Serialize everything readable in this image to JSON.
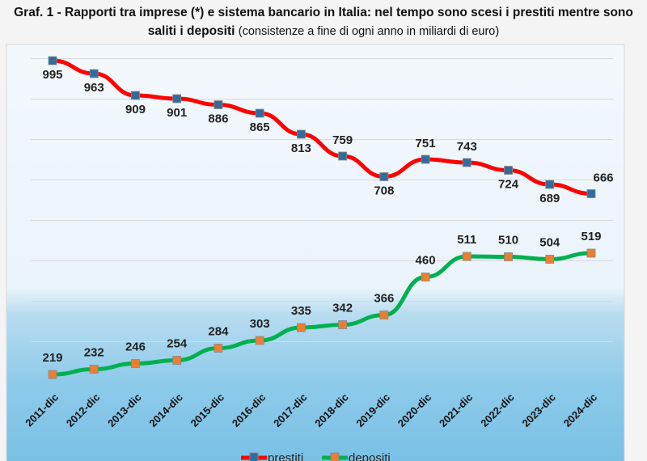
{
  "title": "Graf. 1 - Rapporti tra imprese (*) e sistema bancario in Italia: nel tempo sono scesi i prestiti mentre sono saliti i depositi",
  "subtitle": "(consistenze a fine di ogni anno in miliardi di euro)",
  "chart_data": {
    "type": "line",
    "categories": [
      "2011-dic",
      "2012-dic",
      "2013-dic",
      "2014-dic",
      "2015-dic",
      "2016-dic",
      "2017-dic",
      "2018-dic",
      "2019-dic",
      "2020-dic",
      "2021-dic",
      "2022-dic",
      "2023-dic",
      "2024-dic"
    ],
    "series": [
      {
        "name": "prestiti",
        "color": "#ff0000",
        "marker_color": "#2e6d9e",
        "values": [
          995,
          963,
          909,
          901,
          886,
          865,
          813,
          759,
          708,
          751,
          743,
          724,
          689,
          666
        ]
      },
      {
        "name": "depositi",
        "color": "#00b050",
        "marker_color": "#ed7d31",
        "values": [
          219,
          232,
          246,
          254,
          284,
          303,
          335,
          342,
          366,
          460,
          511,
          510,
          504,
          519
        ]
      }
    ],
    "ylim": [
      200,
      1000
    ],
    "grid": true,
    "y_tick_labels_shown": false,
    "legend": "bottom"
  }
}
